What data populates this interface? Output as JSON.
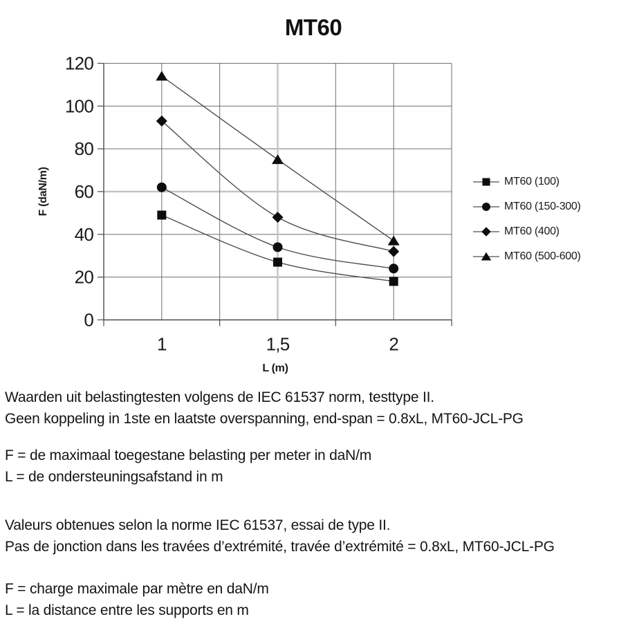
{
  "chart_data": {
    "type": "line",
    "title": "MT60",
    "xlabel": "L (m)",
    "ylabel": "F (daN/m)",
    "categories": [
      "1",
      "1,5",
      "2"
    ],
    "x_values": [
      1,
      1.5,
      2
    ],
    "ylim": [
      0,
      120
    ],
    "y_ticks": [
      0,
      20,
      40,
      60,
      80,
      100,
      120
    ],
    "grid": true,
    "legend_position": "right",
    "series": [
      {
        "name": "MT60 (100)",
        "marker": "square",
        "values": [
          49,
          27,
          18
        ]
      },
      {
        "name": "MT60 (150-300)",
        "marker": "circle",
        "values": [
          62,
          34,
          24
        ]
      },
      {
        "name": "MT60 (400)",
        "marker": "diamond",
        "values": [
          93,
          48,
          32
        ]
      },
      {
        "name": "MT60 (500-600)",
        "marker": "triangle",
        "values": [
          114,
          75,
          37
        ]
      }
    ],
    "colors": {
      "marker": "#0d0d0d",
      "line": "#4d4d4d",
      "grid": "#6e6e6e",
      "grid_muted": "#c3c3c3",
      "axis": "#4a4a4a",
      "text": "#1a1a1a"
    }
  },
  "notes": {
    "nl": {
      "description": [
        "Waarden uit belastingtesten volgens de IEC 61537 norm, testtype II.",
        "Geen koppeling in 1ste en laatste overspanning, end-span = 0.8xL, MT60-JCL-PG"
      ],
      "legend_def": [
        "F = de maximaal toegestane belasting per meter in daN/m",
        "L = de ondersteuningsafstand in m"
      ]
    },
    "fr": {
      "description": [
        "Valeurs obtenues selon la norme IEC 61537, essai de type II.",
        "Pas de jonction dans les travées d’extrémité, travée d’extrémité = 0.8xL, MT60-JCL-PG"
      ],
      "legend_def": [
        "F = charge maximale par mètre en daN/m",
        "L = la distance entre les supports en m"
      ]
    }
  }
}
